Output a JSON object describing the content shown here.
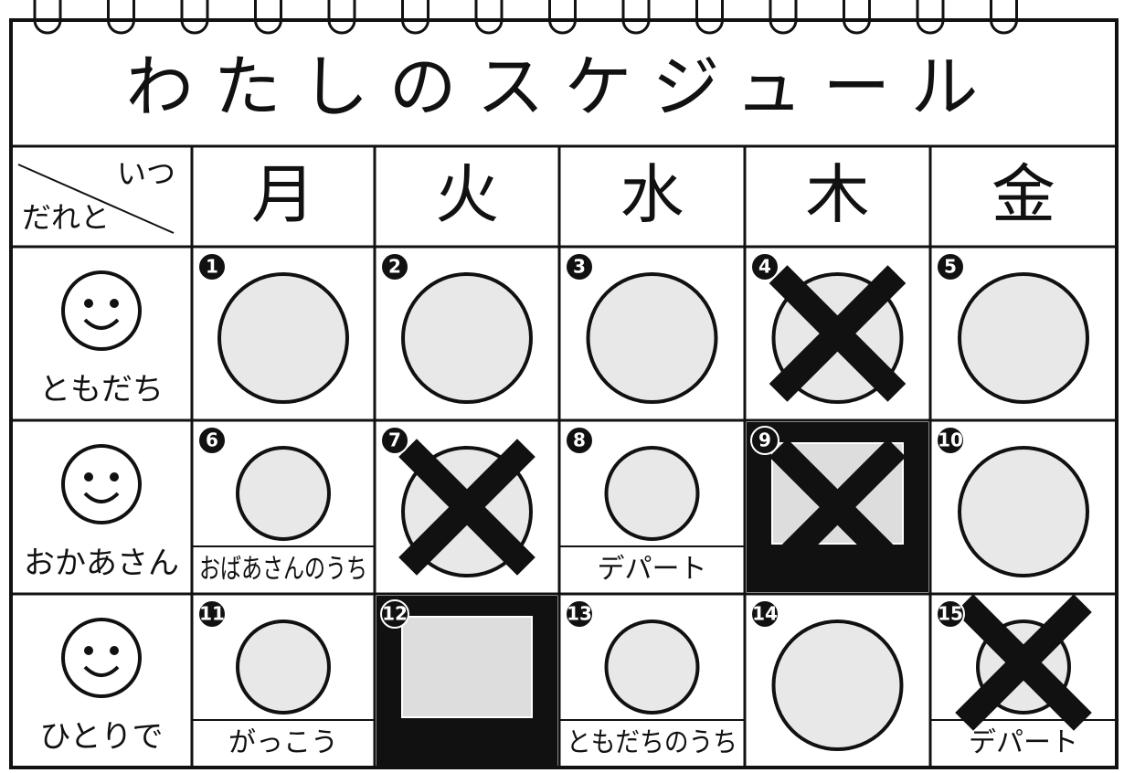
{
  "title": "わたしのスケジュール",
  "corner": {
    "when": "いつ",
    "who": "だれと"
  },
  "days": [
    "月",
    "火",
    "水",
    "木",
    "金"
  ],
  "rows": [
    {
      "who": "ともだち",
      "cells": [
        {
          "number": 1
        },
        {
          "number": 2
        },
        {
          "number": 3
        },
        {
          "number": 4,
          "crossed": true
        },
        {
          "number": 5
        }
      ]
    },
    {
      "who": "おかあさん",
      "cells": [
        {
          "number": 6,
          "caption": "おばあさんのうち"
        },
        {
          "number": 7,
          "crossed": true
        },
        {
          "number": 8,
          "caption": "デパート"
        },
        {
          "number": 9,
          "crossed": true,
          "dark": true
        },
        {
          "number": 10
        }
      ]
    },
    {
      "who": "ひとりで",
      "cells": [
        {
          "number": 11,
          "caption": "がっこう"
        },
        {
          "number": 12,
          "dark": true
        },
        {
          "number": 13,
          "caption": "ともだちのうち"
        },
        {
          "number": 14
        },
        {
          "number": 15,
          "crossed": true,
          "caption": "デパート"
        }
      ]
    }
  ]
}
